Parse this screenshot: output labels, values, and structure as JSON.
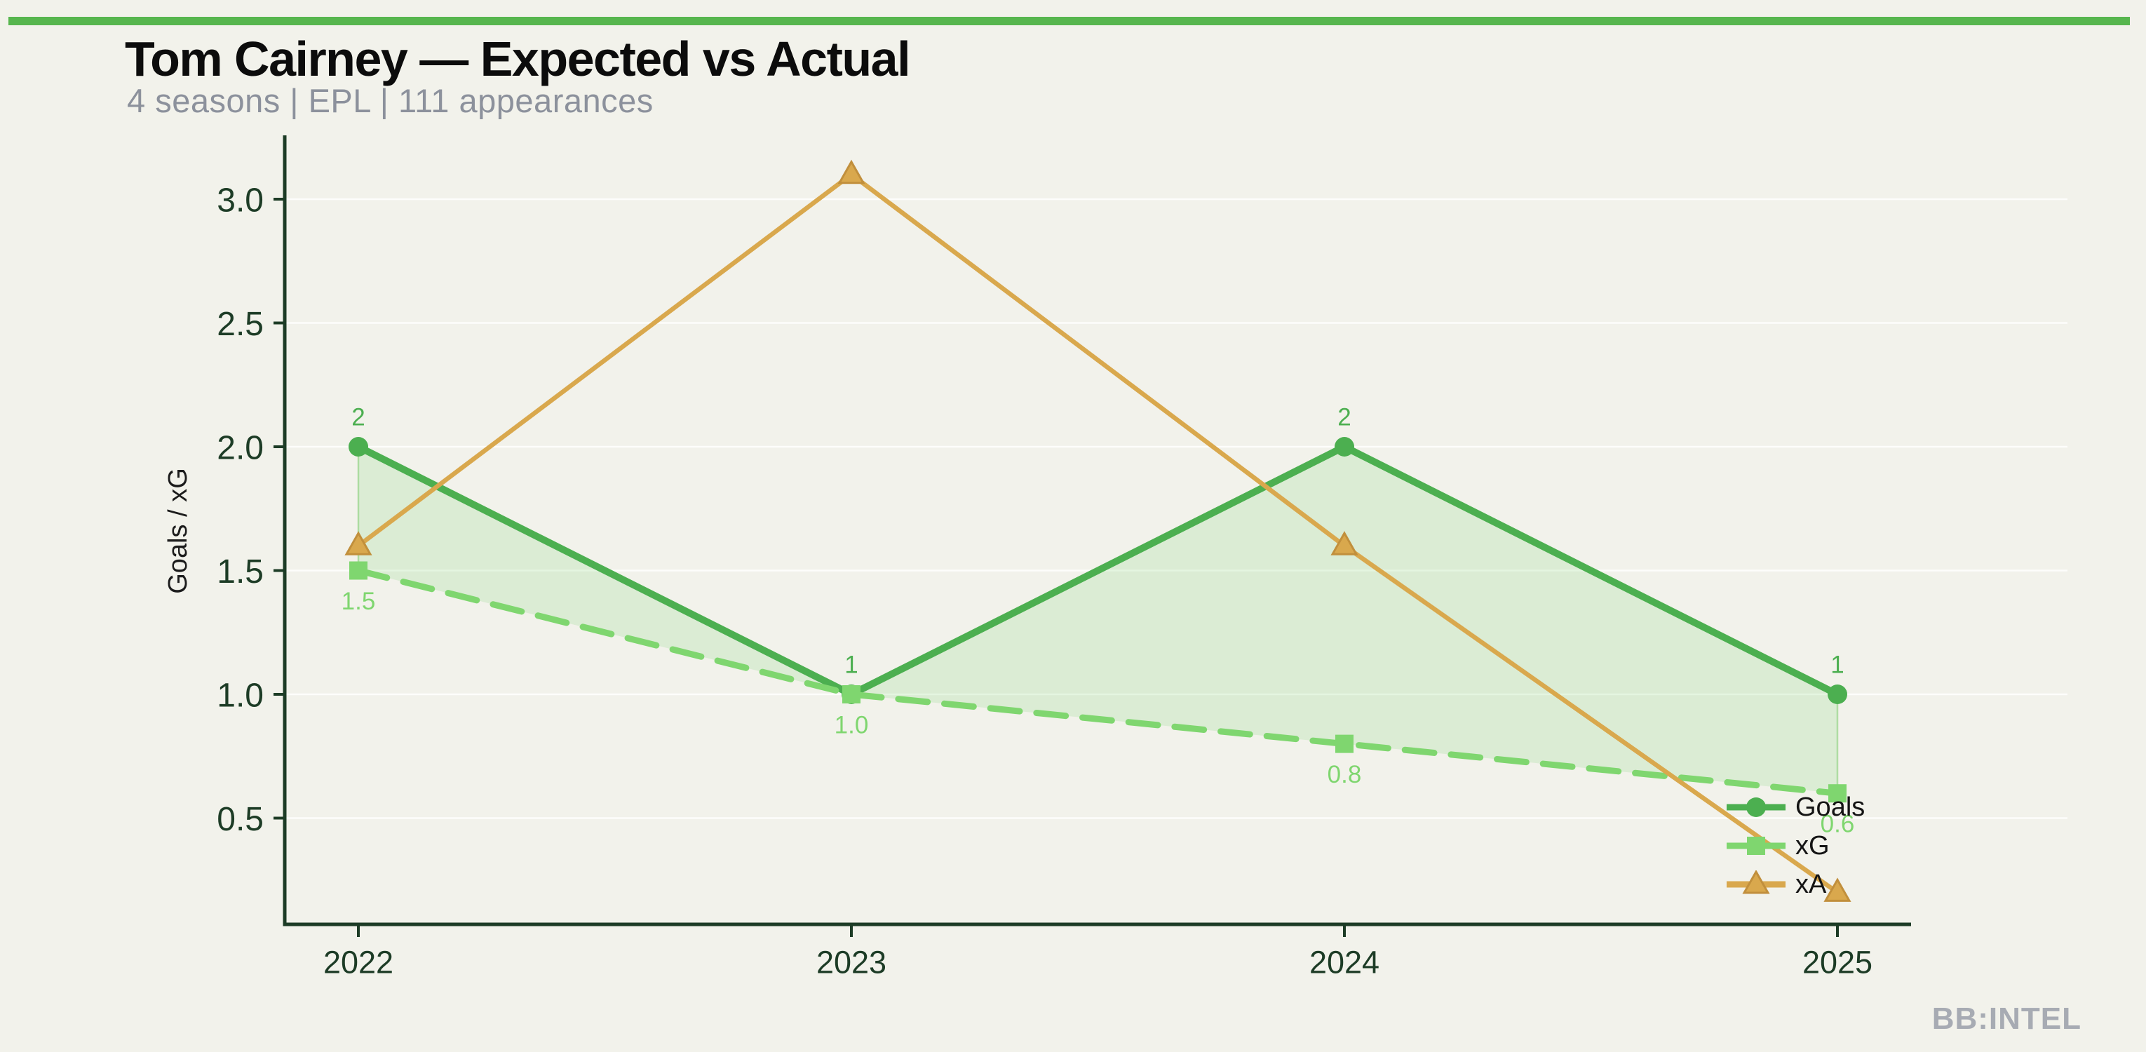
{
  "accent_bar": {
    "color": "#57b64e"
  },
  "header": {
    "title": "Tom Cairney — Expected vs Actual",
    "subtitle": "4 seasons | EPL | 111 appearances"
  },
  "watermark": "BB:INTEL",
  "chart_data": {
    "type": "line",
    "title": "Tom Cairney — Expected vs Actual",
    "subtitle": "4 seasons | EPL | 111 appearances",
    "categories": [
      "2022",
      "2023",
      "2024",
      "2025"
    ],
    "series": [
      {
        "name": "Goals",
        "values": [
          2,
          1,
          2,
          1
        ],
        "color": "#4caf50",
        "marker": "circle",
        "line_style": "solid",
        "point_labels": [
          "2",
          "1",
          "2",
          "1"
        ],
        "label_side": "above"
      },
      {
        "name": "xG",
        "values": [
          1.5,
          1.0,
          0.8,
          0.6
        ],
        "color": "#7fd66f",
        "marker": "square",
        "line_style": "dashed",
        "point_labels": [
          "1.5",
          "1.0",
          "0.8",
          "0.6"
        ],
        "label_side": "below"
      },
      {
        "name": "xA",
        "values": [
          1.6,
          3.1,
          1.6,
          0.2
        ],
        "color": "#d9a84d",
        "marker": "triangle",
        "marker_edge": "#c18f3c",
        "line_style": "solid",
        "point_labels": null,
        "label_side": null
      }
    ],
    "fill_between": {
      "upper": "Goals",
      "lower": "xG",
      "color": "rgba(130,213,118,0.20)",
      "edge_color": "rgba(127,205,112,0.55)"
    },
    "xlabel": "",
    "ylabel": "Goals / xG",
    "y_ticks": [
      0.5,
      1.0,
      1.5,
      2.0,
      2.5,
      3.0
    ],
    "y_tick_labels": [
      "0.5",
      "1.0",
      "1.5",
      "2.0",
      "2.5",
      "3.0"
    ],
    "ylim": [
      0.1,
      3.3
    ],
    "grid": "horizontal",
    "legend_position": "lower right",
    "colors": {
      "axis": "#1d3c26",
      "tick_label": "#1d3c26",
      "grid": "rgba(255,255,255,0.8)",
      "axis_title": "#1c1c1c",
      "legend_text": "#141414"
    }
  }
}
